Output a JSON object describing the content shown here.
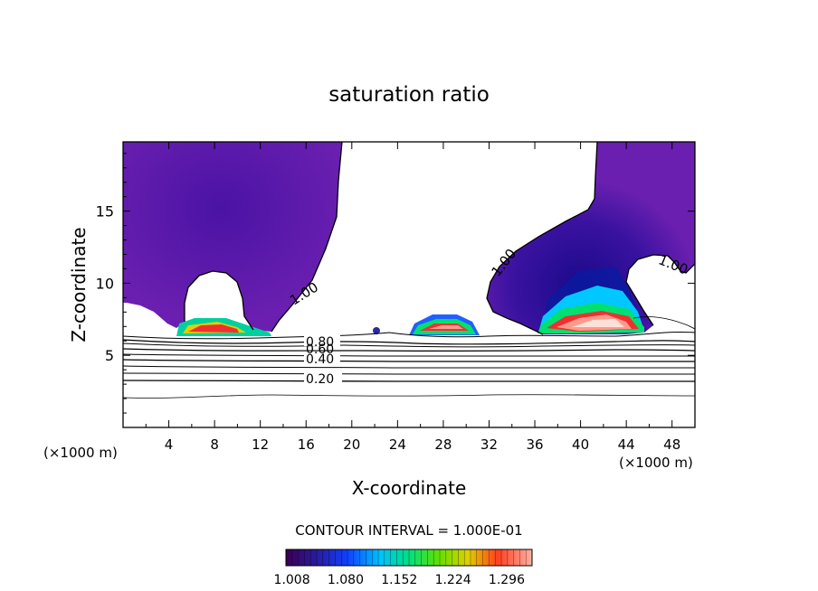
{
  "chart_data": {
    "type": "contour",
    "title": "saturation ratio",
    "xlabel": "X-coordinate",
    "ylabel": "Z-coordinate",
    "xlim": [
      0,
      50
    ],
    "ylim": [
      0,
      19.8
    ],
    "x_ticks": [
      4,
      8,
      12,
      16,
      20,
      24,
      28,
      32,
      36,
      40,
      44,
      48
    ],
    "y_ticks": [
      5,
      10,
      15
    ],
    "x_units_left": "(×1000 m)",
    "x_units_right": "(×1000 m)",
    "contour_line_labels": [
      "1.00",
      "1.00",
      "1.00",
      "0.80",
      "0.60",
      "0.40",
      "0.20"
    ],
    "contour_interval_text": "CONTOUR INTERVAL = 1.000E-01",
    "colorbar_tick_labels": [
      "1.008",
      "1.080",
      "1.152",
      "1.224",
      "1.296"
    ],
    "colorbar_values": [
      1.008,
      1.08,
      1.152,
      1.224,
      1.296
    ],
    "colorbar_range": [
      1.0,
      1.33
    ],
    "colors": {
      "supersat_base": "#6a1fb0",
      "deep_blue": "#2a0a8e",
      "cyan": "#00d0ff",
      "green": "#00e070",
      "red": "#f03030",
      "salmon": "#ff9a8a"
    },
    "subsaturated_contour_levels": [
      0.2,
      0.4,
      0.6,
      0.8
    ]
  }
}
